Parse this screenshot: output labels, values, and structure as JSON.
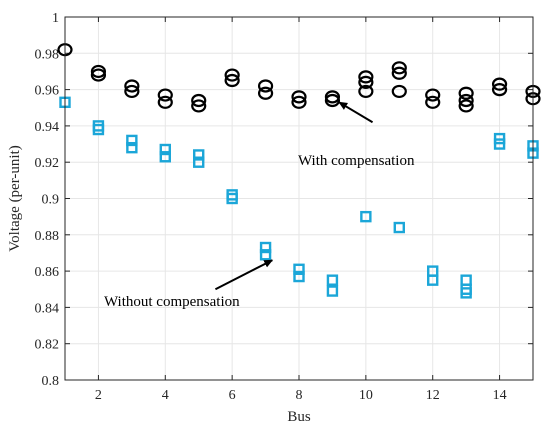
{
  "chart_data": {
    "type": "scatter",
    "xlabel": "Bus",
    "ylabel": "Voltage (per-unit)",
    "xlim": [
      1,
      15
    ],
    "ylim": [
      0.8,
      1.0
    ],
    "x_ticks": [
      2,
      4,
      6,
      8,
      10,
      12,
      14
    ],
    "x_tick_labels": [
      "2",
      "4",
      "6",
      "8",
      "10",
      "12",
      "14"
    ],
    "y_ticks": [
      0.8,
      0.82,
      0.84,
      0.86,
      0.88,
      0.9,
      0.92,
      0.94,
      0.96,
      0.98,
      1.0
    ],
    "y_tick_labels": [
      "0.8",
      "0.82",
      "0.84",
      "0.86",
      "0.88",
      "0.9",
      "0.92",
      "0.94",
      "0.96",
      "0.98",
      "1"
    ],
    "grid": true,
    "series": [
      {
        "marker": "circle",
        "color": "#000000",
        "points": [
          [
            1,
            0.982
          ],
          [
            2,
            0.97
          ],
          [
            2,
            0.968
          ],
          [
            3,
            0.962
          ],
          [
            3,
            0.959
          ],
          [
            4,
            0.957
          ],
          [
            4,
            0.953
          ],
          [
            5,
            0.954
          ],
          [
            5,
            0.951
          ],
          [
            6,
            0.968
          ],
          [
            6,
            0.965
          ],
          [
            7,
            0.962
          ],
          [
            7,
            0.958
          ],
          [
            8,
            0.956
          ],
          [
            8,
            0.953
          ],
          [
            9,
            0.956
          ],
          [
            9,
            0.954
          ],
          [
            10,
            0.967
          ],
          [
            10,
            0.964
          ],
          [
            10,
            0.959
          ],
          [
            11,
            0.972
          ],
          [
            11,
            0.969
          ],
          [
            11,
            0.959
          ],
          [
            12,
            0.957
          ],
          [
            12,
            0.953
          ],
          [
            13,
            0.958
          ],
          [
            13,
            0.954
          ],
          [
            13,
            0.951
          ],
          [
            14,
            0.963
          ],
          [
            14,
            0.96
          ],
          [
            15,
            0.959
          ],
          [
            15,
            0.955
          ]
        ]
      },
      {
        "marker": "square",
        "color": "#1BA6D8",
        "points": [
          [
            1,
            0.953
          ],
          [
            2,
            0.94
          ],
          [
            2,
            0.938
          ],
          [
            3,
            0.932
          ],
          [
            3,
            0.928
          ],
          [
            4,
            0.927
          ],
          [
            4,
            0.923
          ],
          [
            5,
            0.924
          ],
          [
            5,
            0.92
          ],
          [
            6,
            0.902
          ],
          [
            6,
            0.9
          ],
          [
            7,
            0.873
          ],
          [
            7,
            0.869
          ],
          [
            8,
            0.861
          ],
          [
            8,
            0.857
          ],
          [
            9,
            0.855
          ],
          [
            9,
            0.849
          ],
          [
            10,
            0.89
          ],
          [
            11,
            0.884
          ],
          [
            12,
            0.86
          ],
          [
            12,
            0.855
          ],
          [
            13,
            0.855
          ],
          [
            13,
            0.85
          ],
          [
            13,
            0.848
          ],
          [
            14,
            0.933
          ],
          [
            14,
            0.93
          ],
          [
            15,
            0.929
          ],
          [
            15,
            0.925
          ]
        ]
      }
    ],
    "annotations": [
      {
        "text": "With compensation",
        "arrow_target": [
          9.2,
          0.953
        ],
        "arrow_from": [
          10.2,
          0.942
        ]
      },
      {
        "text": "Without compensation",
        "arrow_target": [
          7.2,
          0.866
        ],
        "arrow_from": [
          5.5,
          0.85
        ]
      }
    ]
  }
}
